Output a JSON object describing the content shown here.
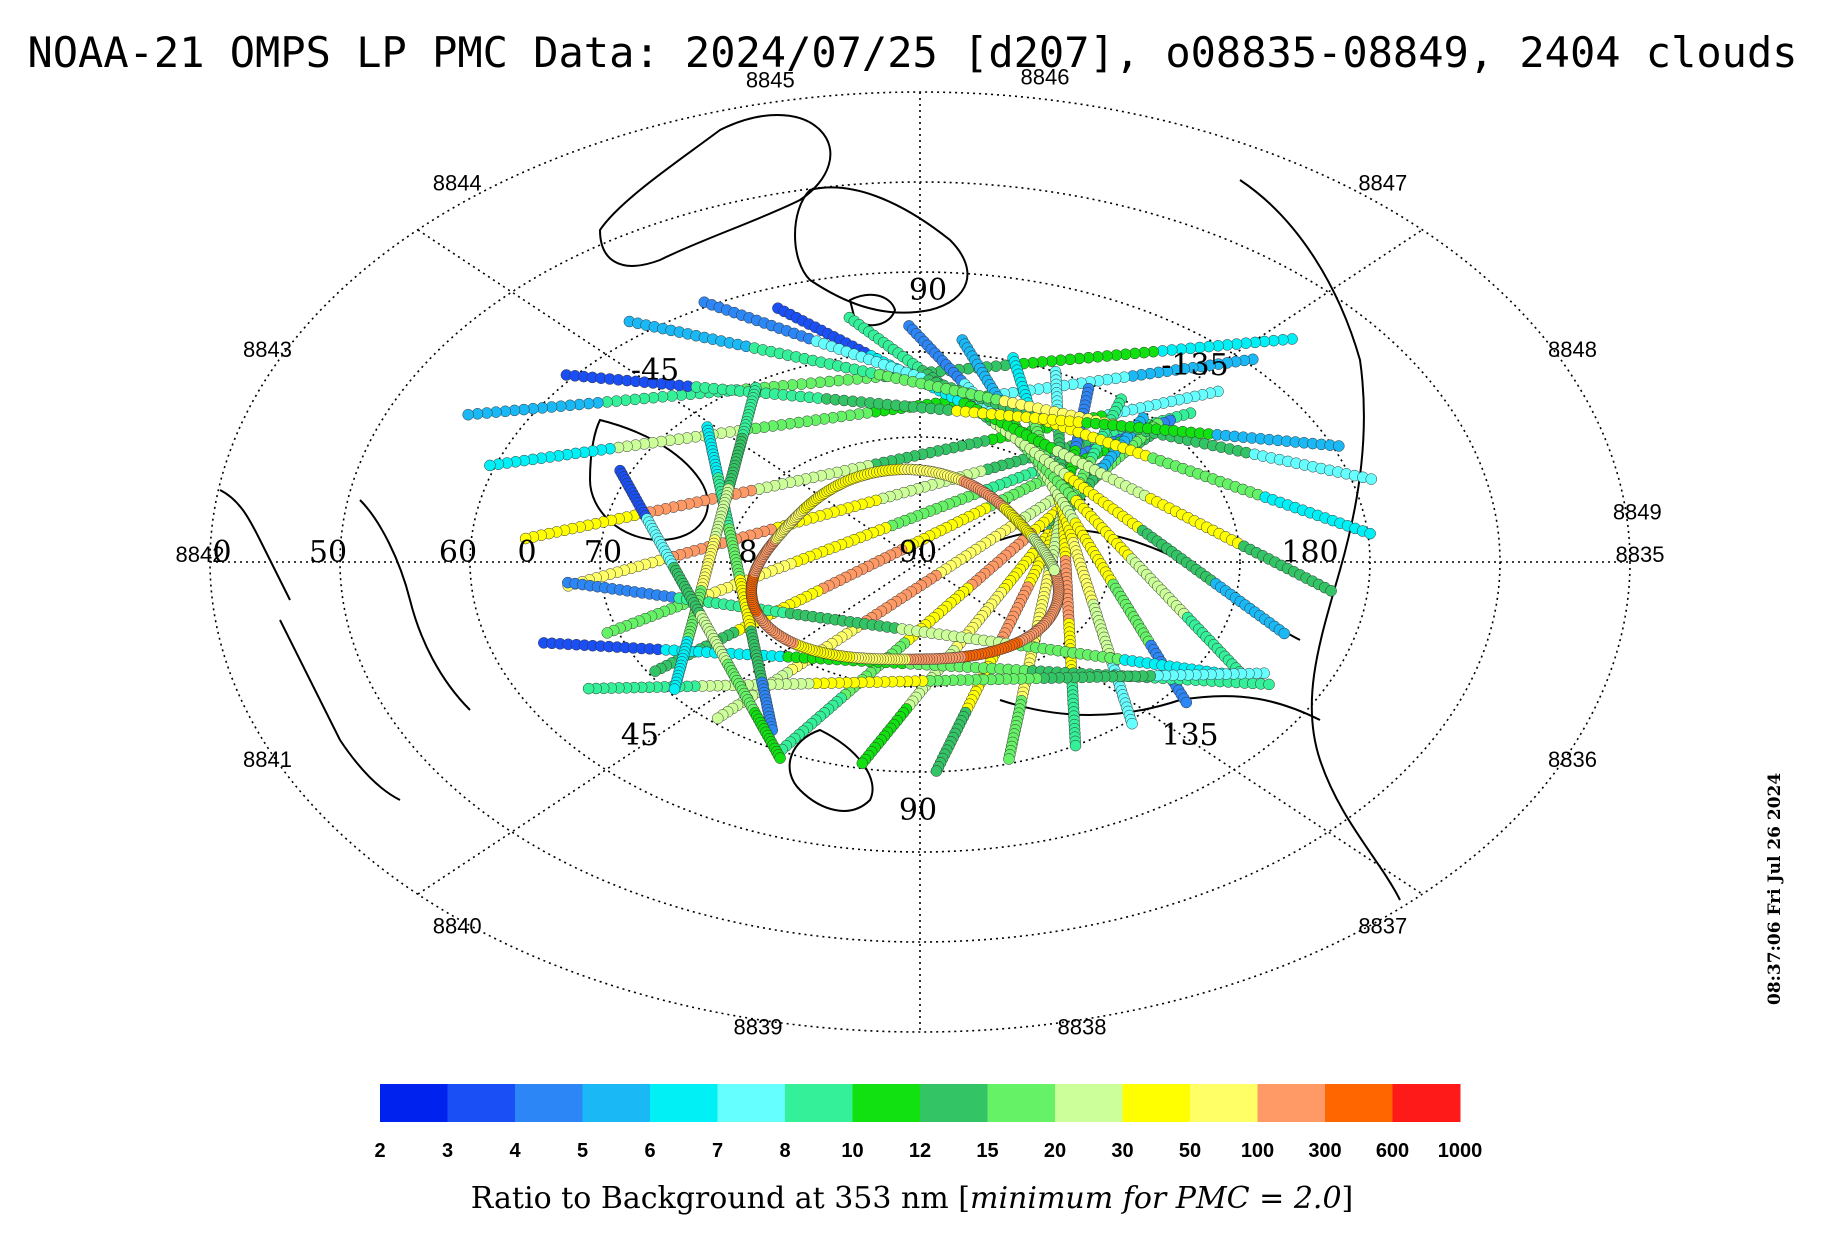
{
  "title": "NOAA-21 OMPS LP PMC Data: 2024/07/25 [d207], o08835-08849, 2404 clouds",
  "timestamp": "08:37:06 Fri Jul 26 2024",
  "colorbar": {
    "label_prefix": "Ratio to Background at 353 nm [",
    "label_italic": "minimum for PMC = 2.0",
    "label_suffix": "]",
    "colors": [
      "#0022ee",
      "#1a4ff5",
      "#2d86f5",
      "#1ab8f5",
      "#00f0f5",
      "#66ffff",
      "#33f099",
      "#11e011",
      "#33c466",
      "#66f266",
      "#ccff99",
      "#ffff00",
      "#ffff66",
      "#ff9966",
      "#ff6600",
      "#ff1a1a"
    ],
    "ticks": [
      "2",
      "3",
      "4",
      "5",
      "6",
      "7",
      "8",
      "10",
      "12",
      "15",
      "20",
      "30",
      "50",
      "100",
      "300",
      "600",
      "1000"
    ]
  },
  "orbit_labels": [
    {
      "text": "8835",
      "angle": 0
    },
    {
      "text": "8836",
      "angle": 25
    },
    {
      "text": "8837",
      "angle": 50
    },
    {
      "text": "8838",
      "angle": 77
    },
    {
      "text": "8839",
      "angle": 103
    },
    {
      "text": "8840",
      "angle": 130
    },
    {
      "text": "8841",
      "angle": 155
    },
    {
      "text": "8842",
      "angle": 180
    },
    {
      "text": "8843",
      "angle": 205
    },
    {
      "text": "8844",
      "angle": 230
    },
    {
      "text": "8845",
      "angle": 258
    },
    {
      "text": "8846",
      "angle": 280
    },
    {
      "text": "8847",
      "angle": 310
    },
    {
      "text": "8848",
      "angle": 335
    },
    {
      "text": "8849",
      "angle": 355
    }
  ],
  "grid_labels": [
    {
      "text": "90",
      "pos": "top-inner"
    },
    {
      "text": "-45",
      "pos": "upper-left"
    },
    {
      "text": "-135",
      "pos": "upper-right"
    },
    {
      "text": "90",
      "pos": "center"
    },
    {
      "text": "180",
      "pos": "right-axis"
    },
    {
      "text": "45",
      "pos": "lower-left"
    },
    {
      "text": "135",
      "pos": "lower-right"
    },
    {
      "text": "90",
      "pos": "bottom"
    },
    {
      "text": "0",
      "pos": "left-1"
    },
    {
      "text": "50",
      "pos": "left-2"
    },
    {
      "text": "60",
      "pos": "left-3"
    },
    {
      "text": "0",
      "pos": "left-4"
    },
    {
      "text": "70",
      "pos": "left-5"
    },
    {
      "text": "8",
      "pos": "left-6"
    }
  ],
  "tracks": [
    {
      "ang": 172,
      "c": 0.55,
      "len": 1.6,
      "lev": [
        4,
        7,
        8,
        9,
        6,
        3
      ]
    },
    {
      "ang": 168,
      "c": 0.45,
      "len": 1.5,
      "lev": [
        3,
        5,
        7,
        9,
        10,
        4
      ]
    },
    {
      "ang": 162,
      "c": 0.3,
      "len": 1.4,
      "lev": [
        5,
        7,
        8,
        10,
        13,
        11
      ]
    },
    {
      "ang": 157,
      "c": 0.2,
      "len": 1.3,
      "lev": [
        6,
        8,
        10,
        11,
        13,
        12
      ]
    },
    {
      "ang": 150,
      "c": 0.12,
      "len": 1.25,
      "lev": [
        2,
        6,
        9,
        11,
        12,
        9
      ]
    },
    {
      "ang": 143,
      "c": 0.05,
      "len": 1.2,
      "lev": [
        7,
        9,
        11,
        13,
        11,
        8
      ]
    },
    {
      "ang": 135,
      "c": -0.05,
      "len": 1.2,
      "lev": [
        8,
        10,
        12,
        13,
        12,
        10
      ]
    },
    {
      "ang": 127,
      "c": -0.12,
      "len": 1.2,
      "lev": [
        9,
        11,
        13,
        11,
        9,
        6
      ]
    },
    {
      "ang": 118,
      "c": -0.18,
      "len": 1.15,
      "lev": [
        3,
        8,
        11,
        12,
        10,
        7
      ]
    },
    {
      "ang": 108,
      "c": -0.22,
      "len": 1.15,
      "lev": [
        6,
        9,
        11,
        13,
        11,
        8
      ]
    },
    {
      "ang": 98,
      "c": -0.25,
      "len": 1.1,
      "lev": [
        2,
        7,
        10,
        12,
        12,
        9
      ]
    },
    {
      "ang": 88,
      "c": -0.28,
      "len": 1.1,
      "lev": [
        5,
        8,
        11,
        13,
        11,
        6
      ]
    },
    {
      "ang": 78,
      "c": -0.3,
      "len": 1.1,
      "lev": [
        4,
        9,
        11,
        12,
        10,
        5
      ]
    },
    {
      "ang": 68,
      "c": -0.32,
      "len": 1.15,
      "lev": [
        3,
        7,
        10,
        11,
        9,
        2
      ]
    },
    {
      "ang": 58,
      "c": -0.35,
      "len": 1.2,
      "lev": [
        2,
        5,
        9,
        11,
        10,
        6
      ]
    },
    {
      "ang": 48,
      "c": -0.38,
      "len": 1.25,
      "lev": [
        6,
        8,
        10,
        11,
        8,
        3
      ]
    },
    {
      "ang": 38,
      "c": -0.42,
      "len": 1.35,
      "lev": [
        1,
        4,
        7,
        10,
        11,
        8
      ]
    },
    {
      "ang": 28,
      "c": -0.48,
      "len": 1.45,
      "lev": [
        2,
        5,
        8,
        11,
        9,
        4
      ]
    },
    {
      "ang": 18,
      "c": -0.5,
      "len": 1.5,
      "lev": [
        3,
        6,
        9,
        12,
        8,
        5
      ]
    },
    {
      "ang": 8,
      "c": -0.45,
      "len": 1.5,
      "lev": [
        1,
        6,
        8,
        11,
        7,
        3
      ]
    },
    {
      "ang": 12,
      "c": 0.2,
      "len": 1.3,
      "lev": [
        2,
        6,
        8,
        10,
        9,
        4
      ]
    },
    {
      "ang": 5,
      "c": 0.3,
      "len": 1.4,
      "lev": [
        1,
        4,
        7,
        9,
        8,
        6
      ]
    },
    {
      "ang": 178,
      "c": -0.35,
      "len": 1.3,
      "lev": [
        5,
        8,
        9,
        11,
        10,
        6
      ]
    },
    {
      "ang": 82,
      "c": 0.35,
      "len": 0.9,
      "lev": [
        4,
        6,
        9,
        11,
        8,
        2
      ]
    },
    {
      "ang": 100,
      "c": 0.4,
      "len": 0.9,
      "lev": [
        6,
        8,
        10,
        12,
        9,
        4
      ]
    },
    {
      "ang": 70,
      "c": 0.45,
      "len": 0.9,
      "lev": [
        1,
        5,
        8,
        10,
        9,
        7
      ]
    }
  ],
  "ring": {
    "lev": [
      13,
      13,
      14,
      13,
      12,
      11,
      13,
      14,
      13,
      12,
      11,
      11,
      12,
      13,
      11,
      10
    ]
  }
}
